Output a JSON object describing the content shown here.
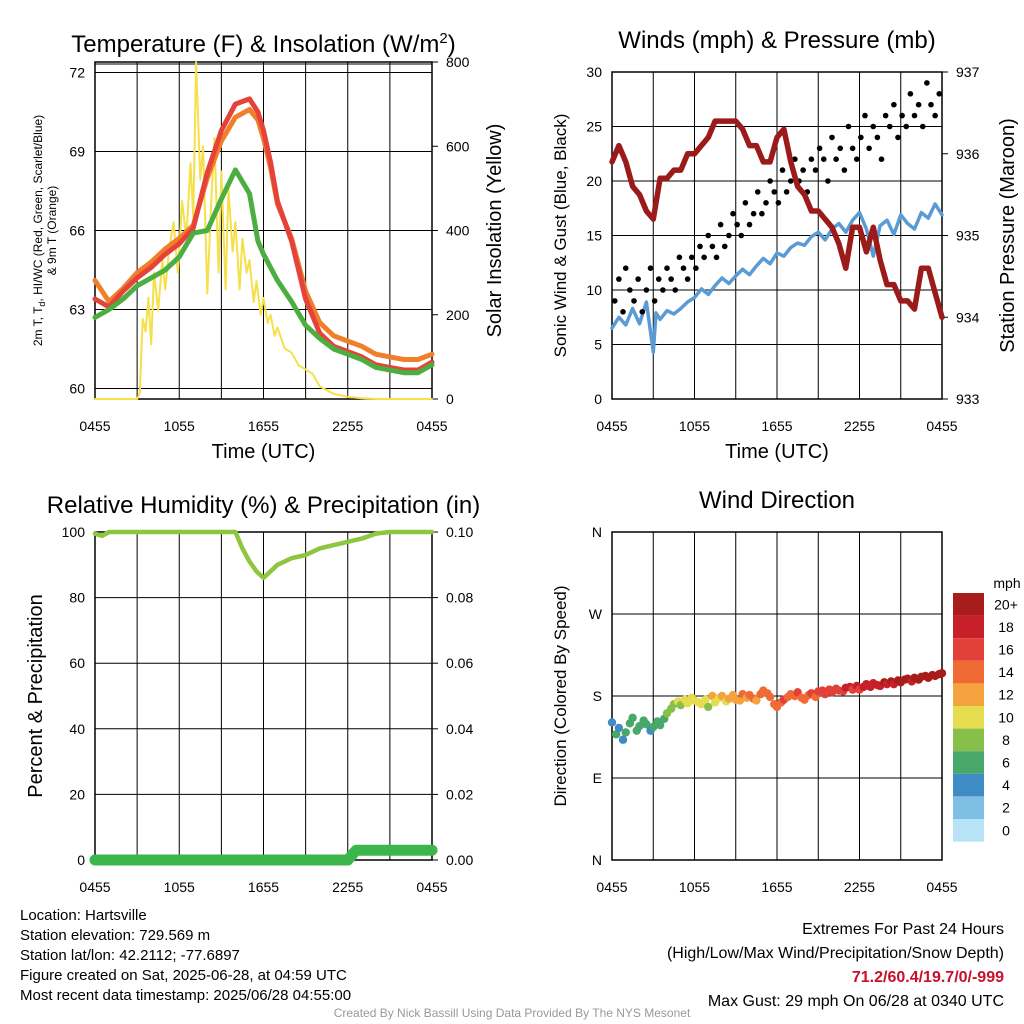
{
  "chart_data": [
    {
      "type": "line",
      "title": "Temperature (F) & Insolation (W/m²)",
      "xlabel": "Time (UTC)",
      "ylabel": "2m T, T",
      "ylabel_sub": "d",
      "ylabel_rest": ", HI/WC (Red, Green, Scarlet/Blue)",
      "ylabel_line2": "& 9m T (Orange)",
      "y2label": "Solar Insolation (Yellow)",
      "ylim": [
        59.6,
        72.4
      ],
      "y2lim": [
        0,
        800
      ],
      "xlim": [
        0,
        24
      ],
      "x_ticks": [
        "0455",
        "1055",
        "1655",
        "2255",
        "0455"
      ],
      "y_ticks": [
        "60",
        "63",
        "66",
        "69",
        "72"
      ],
      "y2_ticks": [
        "0",
        "200",
        "400",
        "600",
        "800"
      ],
      "grid": true,
      "series": [
        {
          "color": "#e5433a",
          "x": [
            0,
            1,
            2,
            3,
            4,
            5,
            6,
            7,
            8,
            9,
            10,
            11,
            11.6,
            12,
            12.5,
            13,
            14,
            15,
            16,
            17,
            18,
            19,
            20,
            21,
            22,
            23,
            24
          ],
          "values": [
            63.4,
            63.1,
            63.7,
            64.2,
            64.6,
            65.1,
            65.5,
            66.1,
            68.2,
            69.8,
            70.8,
            71.0,
            70.5,
            69.8,
            68.6,
            67.1,
            65.6,
            63.4,
            62.1,
            61.6,
            61.4,
            61.2,
            60.9,
            60.8,
            60.7,
            60.7,
            61.0
          ]
        },
        {
          "color": "#f07f2c",
          "x": [
            0,
            1,
            2,
            3,
            4,
            5,
            6,
            7,
            8,
            9,
            10,
            11,
            11.6,
            12,
            12.5,
            13,
            14,
            15,
            16,
            17,
            18,
            19,
            20,
            21,
            22,
            23,
            24
          ],
          "values": [
            64.1,
            63.3,
            63.8,
            64.4,
            64.8,
            65.3,
            65.7,
            66.2,
            68.0,
            69.4,
            70.3,
            70.6,
            70.2,
            69.5,
            68.4,
            67.0,
            65.7,
            63.7,
            62.5,
            62.0,
            61.8,
            61.6,
            61.3,
            61.2,
            61.1,
            61.1,
            61.3
          ]
        },
        {
          "color": "#4cae40",
          "x": [
            0,
            1,
            2,
            3,
            4,
            5,
            6,
            7,
            8,
            9,
            10,
            11,
            11.6,
            12,
            12.5,
            13,
            14,
            15,
            16,
            17,
            18,
            19,
            20,
            21,
            22,
            23,
            24
          ],
          "values": [
            62.7,
            63.0,
            63.4,
            63.9,
            64.2,
            64.5,
            65.0,
            65.9,
            66.0,
            67.2,
            68.3,
            67.4,
            65.6,
            65.1,
            64.6,
            64.1,
            63.3,
            62.4,
            61.9,
            61.5,
            61.3,
            61.1,
            60.8,
            60.7,
            60.6,
            60.6,
            60.9
          ]
        }
      ],
      "insolation": {
        "color": "#f5e04a",
        "x": [
          0,
          3,
          3.2,
          3.3,
          3.4,
          3.6,
          3.8,
          4.0,
          4.2,
          4.5,
          4.8,
          5.0,
          5.3,
          5.6,
          5.9,
          6.2,
          6.5,
          6.8,
          7.0,
          7.2,
          7.5,
          7.7,
          8.0,
          8.3,
          8.5,
          8.8,
          9.0,
          9.3,
          9.5,
          9.8,
          10.0,
          10.3,
          10.5,
          10.8,
          11.0,
          11.3,
          11.5,
          11.8,
          12.0,
          12.3,
          12.5,
          12.8,
          13.0,
          13.5,
          14.0,
          14.5,
          15.0,
          15.5,
          16,
          17,
          18,
          19,
          20,
          24
        ],
        "values": [
          0,
          0,
          15,
          110,
          190,
          160,
          240,
          130,
          300,
          210,
          330,
          260,
          360,
          420,
          300,
          470,
          380,
          560,
          430,
          800,
          520,
          600,
          250,
          480,
          620,
          300,
          540,
          260,
          500,
          350,
          420,
          260,
          380,
          300,
          330,
          230,
          280,
          200,
          240,
          180,
          200,
          150,
          170,
          120,
          110,
          80,
          70,
          60,
          30,
          12,
          5,
          2,
          0,
          0
        ]
      }
    },
    {
      "type": "line",
      "title": "Winds (mph) & Pressure (mb)",
      "xlabel": "Time (UTC)",
      "ylabel": "Sonic Wind & Gust (Blue, Black)",
      "y2label": "Station Pressure (Maroon)",
      "ylim": [
        0,
        30
      ],
      "y2lim": [
        933,
        937
      ],
      "xlim": [
        0,
        24
      ],
      "x_ticks": [
        "0455",
        "1055",
        "1655",
        "2255",
        "0455"
      ],
      "y_ticks": [
        "0",
        "5",
        "10",
        "15",
        "20",
        "25",
        "30"
      ],
      "y2_ticks": [
        "933",
        "934",
        "935",
        "936",
        "937"
      ],
      "grid": true,
      "wind": {
        "color": "#5b9bd5",
        "x": [
          0,
          0.5,
          1,
          1.5,
          2,
          2.5,
          3,
          3.2,
          3.5,
          4,
          4.5,
          5,
          5.5,
          6,
          6.5,
          7,
          7.5,
          8,
          8.5,
          9,
          9.5,
          10,
          10.5,
          11,
          11.5,
          12,
          12.5,
          13,
          13.5,
          14,
          14.5,
          15,
          15.5,
          16,
          16.5,
          17,
          17.5,
          18,
          18.5,
          19,
          19.5,
          20,
          20.5,
          21,
          21.5,
          22,
          22.5,
          23,
          23.5,
          24
        ],
        "values": [
          6.5,
          7.5,
          6.8,
          8.3,
          6.9,
          8.9,
          4.3,
          7.9,
          7.3,
          8.1,
          7.8,
          8.3,
          8.9,
          9.3,
          10.1,
          9.6,
          10.4,
          11.1,
          10.6,
          11.3,
          11.9,
          11.4,
          12.2,
          12.9,
          12.4,
          13.4,
          13.1,
          13.9,
          14.3,
          14.1,
          14.9,
          15.3,
          14.6,
          15.6,
          16.1,
          15.3,
          16.4,
          17.1,
          15.6,
          13.1,
          15.9,
          16.4,
          15.1,
          16.9,
          16.1,
          15.6,
          17.1,
          16.6,
          17.9,
          16.9
        ]
      },
      "gusts": {
        "color": "#000000",
        "x": [
          0.2,
          0.5,
          0.8,
          1.0,
          1.3,
          1.6,
          1.9,
          2.2,
          2.5,
          2.8,
          3.1,
          3.4,
          3.7,
          4.0,
          4.3,
          4.6,
          4.9,
          5.2,
          5.5,
          5.8,
          6.1,
          6.4,
          6.7,
          7.0,
          7.3,
          7.6,
          7.9,
          8.2,
          8.5,
          8.8,
          9.1,
          9.4,
          9.7,
          10.0,
          10.3,
          10.6,
          10.9,
          11.2,
          11.5,
          11.8,
          12.1,
          12.4,
          12.7,
          13.0,
          13.3,
          13.6,
          13.9,
          14.2,
          14.5,
          14.8,
          15.1,
          15.4,
          15.7,
          16.0,
          16.3,
          16.6,
          16.9,
          17.2,
          17.5,
          17.8,
          18.1,
          18.4,
          18.7,
          19.0,
          19.3,
          19.6,
          19.9,
          20.2,
          20.5,
          20.8,
          21.1,
          21.4,
          21.7,
          22.0,
          22.3,
          22.6,
          22.9,
          23.2,
          23.5,
          23.8
        ],
        "values": [
          9,
          11,
          8,
          12,
          10,
          9,
          11,
          8,
          10,
          12,
          9,
          11,
          10,
          12,
          11,
          10,
          13,
          12,
          11,
          13,
          12,
          14,
          13,
          15,
          14,
          13,
          16,
          14,
          15,
          17,
          16,
          15,
          18,
          16,
          17,
          19,
          17,
          18,
          20,
          19,
          18,
          21,
          19,
          20,
          22,
          20,
          21,
          19,
          22,
          21,
          23,
          22,
          20,
          24,
          22,
          23,
          21,
          25,
          23,
          22,
          24,
          26,
          23,
          25,
          24,
          22,
          26,
          25,
          27,
          24,
          26,
          25,
          28,
          26,
          27,
          25,
          29,
          27,
          26,
          28
        ]
      },
      "pressure": {
        "color": "#9b1b1b",
        "x": [
          0,
          0.5,
          1,
          1.5,
          2,
          2.5,
          3,
          3.5,
          4,
          4.5,
          5,
          5.5,
          6,
          6.5,
          7,
          7.5,
          8,
          8.5,
          9,
          9.5,
          10,
          10.5,
          11,
          11.5,
          12,
          12.5,
          13,
          13.5,
          14,
          14.5,
          15,
          15.5,
          16,
          16.5,
          17,
          17.5,
          18,
          18.5,
          19,
          19.5,
          20,
          20.5,
          21,
          21.5,
          22,
          22.5,
          23,
          23.5,
          24
        ],
        "values": [
          935.9,
          936.1,
          935.9,
          935.6,
          935.5,
          935.3,
          935.2,
          935.7,
          935.7,
          935.8,
          935.8,
          936.0,
          936.0,
          936.1,
          936.2,
          936.4,
          936.4,
          936.4,
          936.4,
          936.3,
          936.1,
          936.1,
          935.9,
          935.9,
          936.2,
          936.3,
          935.9,
          935.6,
          935.5,
          935.3,
          935.3,
          935.2,
          935.1,
          934.9,
          934.6,
          935.1,
          935.1,
          934.8,
          935.1,
          934.7,
          934.4,
          934.4,
          934.2,
          934.2,
          934.1,
          934.6,
          934.6,
          934.3,
          934.0
        ]
      }
    },
    {
      "type": "line",
      "title": "Relative Humidity (%) & Precipitation (in)",
      "xlabel": "",
      "ylabel": "Percent & Precipitation",
      "ylim": [
        0,
        100
      ],
      "y2lim": [
        0,
        0.1
      ],
      "xlim": [
        0,
        24
      ],
      "x_ticks": [
        "0455",
        "1055",
        "1655",
        "2255",
        "0455"
      ],
      "y_ticks": [
        "0",
        "20",
        "40",
        "60",
        "80",
        "100"
      ],
      "y2_ticks": [
        "0.00",
        "0.02",
        "0.04",
        "0.06",
        "0.08",
        "0.10"
      ],
      "grid": true,
      "humidity": {
        "color": "#8dc63f",
        "x": [
          0,
          0.5,
          1,
          2,
          4,
          6,
          8,
          10,
          10.5,
          11,
          11.5,
          12,
          12.5,
          13,
          14,
          15,
          16,
          17,
          18,
          19,
          20,
          21,
          22,
          23,
          24
        ],
        "values": [
          99.5,
          98.8,
          100,
          100,
          100,
          100,
          100,
          100,
          95,
          91,
          88,
          86,
          88,
          90,
          92,
          93,
          95,
          96,
          97,
          98,
          99.5,
          100,
          100,
          100,
          100
        ]
      },
      "precipitation": {
        "color": "#3cb54a",
        "x": [
          0,
          10,
          18,
          18.6,
          19,
          24
        ],
        "values": [
          0,
          0,
          0,
          0.003,
          0.003,
          0.003
        ]
      }
    },
    {
      "type": "scatter",
      "title": "Wind Direction",
      "xlabel": "",
      "ylabel": "Direction (Colored By Speed)",
      "ylim": [
        0,
        360
      ],
      "xlim": [
        0,
        24
      ],
      "x_ticks": [
        "0455",
        "1055",
        "1655",
        "2255",
        "0455"
      ],
      "y_ticks": [
        "N",
        "E",
        "S",
        "W",
        "N"
      ],
      "grid": true,
      "legend_title": "mph",
      "legend": [
        "20+",
        "18",
        "16",
        "14",
        "12",
        "10",
        "8",
        "6",
        "4",
        "2",
        "0"
      ],
      "legend_colors": [
        "#a81c1c",
        "#c8202a",
        "#e3403a",
        "#f06a35",
        "#f5a23f",
        "#e5dc50",
        "#86c04b",
        "#48a76a",
        "#3f8bc4",
        "#7fbfe6",
        "#b8e2f5"
      ],
      "x": [
        0,
        0.3,
        0.5,
        0.8,
        1.0,
        1.3,
        1.5,
        1.8,
        2.0,
        2.3,
        2.5,
        2.8,
        3.0,
        3.3,
        3.5,
        3.8,
        4.0,
        4.3,
        4.5,
        4.8,
        5.0,
        5.3,
        5.5,
        5.8,
        6.0,
        6.3,
        6.5,
        6.8,
        7.0,
        7.3,
        7.5,
        7.8,
        8.0,
        8.3,
        8.5,
        8.8,
        9.0,
        9.3,
        9.5,
        9.8,
        10.0,
        10.3,
        10.5,
        10.8,
        11.0,
        11.3,
        11.5,
        11.8,
        12.0,
        12.3,
        12.5,
        12.8,
        13.0,
        13.3,
        13.5,
        13.8,
        14.0,
        14.3,
        14.5,
        14.8,
        15.0,
        15.3,
        15.5,
        15.8,
        16.0,
        16.3,
        16.5,
        16.8,
        17.0,
        17.3,
        17.5,
        17.8,
        18.0,
        18.3,
        18.5,
        18.8,
        19.0,
        19.3,
        19.5,
        19.8,
        20.0,
        20.3,
        20.5,
        20.8,
        21.0,
        21.3,
        21.5,
        21.8,
        22.0,
        22.3,
        22.5,
        22.8,
        23.0,
        23.3,
        23.5,
        23.8,
        24.0
      ],
      "values": [
        151,
        138,
        145,
        132,
        140,
        150,
        156,
        142,
        147,
        153,
        149,
        142,
        146,
        152,
        148,
        155,
        161,
        166,
        171,
        174,
        170,
        176,
        172,
        178,
        175,
        173,
        171,
        176,
        168,
        180,
        173,
        178,
        180,
        174,
        177,
        181,
        176,
        175,
        182,
        178,
        181,
        177,
        175,
        182,
        186,
        183,
        179,
        171,
        168,
        173,
        176,
        179,
        182,
        180,
        184,
        178,
        176,
        181,
        183,
        179,
        185,
        186,
        182,
        187,
        184,
        188,
        186,
        185,
        189,
        190,
        187,
        191,
        187,
        190,
        193,
        190,
        194,
        192,
        191,
        195,
        193,
        196,
        193,
        197,
        195,
        198,
        199,
        196,
        200,
        198,
        201,
        202,
        200,
        203,
        202,
        204,
        205
      ],
      "speeds": [
        5,
        6,
        5,
        4,
        6,
        6,
        7,
        6,
        7,
        6,
        6,
        5,
        7,
        6,
        7,
        7,
        8,
        8,
        9,
        10,
        9,
        10,
        11,
        10,
        10,
        11,
        10,
        11,
        9,
        12,
        10,
        11,
        12,
        11,
        12,
        13,
        12,
        12,
        14,
        13,
        14,
        14,
        13,
        15,
        15,
        14,
        14,
        15,
        15,
        14,
        16,
        15,
        14,
        15,
        16,
        15,
        15,
        14,
        16,
        15,
        16,
        17,
        16,
        16,
        17,
        17,
        16,
        17,
        18,
        18,
        17,
        18,
        17,
        19,
        19,
        18,
        19,
        19,
        18,
        20,
        19,
        20,
        19,
        20,
        20,
        21,
        20,
        19,
        20,
        21,
        21,
        22,
        21,
        21,
        22,
        22,
        22
      ]
    }
  ],
  "info": {
    "location": "Location: Hartsville",
    "elevation": "Station elevation: 729.569 m",
    "latlon": "Station lat/lon: 42.2112; -77.6897",
    "created": "Figure created on Sat, 2025-06-28, at 04:59 UTC",
    "recent": "Most recent data timestamp: 2025/06/28 04:55:00"
  },
  "extremes": {
    "heading": "Extremes For Past 24 Hours",
    "subheading": "(High/Low/Max Wind/Precipitation/Snow Depth)",
    "values": "71.2/60.4/19.7/0/-999",
    "gust": "Max Gust: 29 mph On 06/28 at 0340 UTC"
  },
  "credit": "Created By Nick Bassill Using Data Provided By The NYS Mesonet"
}
